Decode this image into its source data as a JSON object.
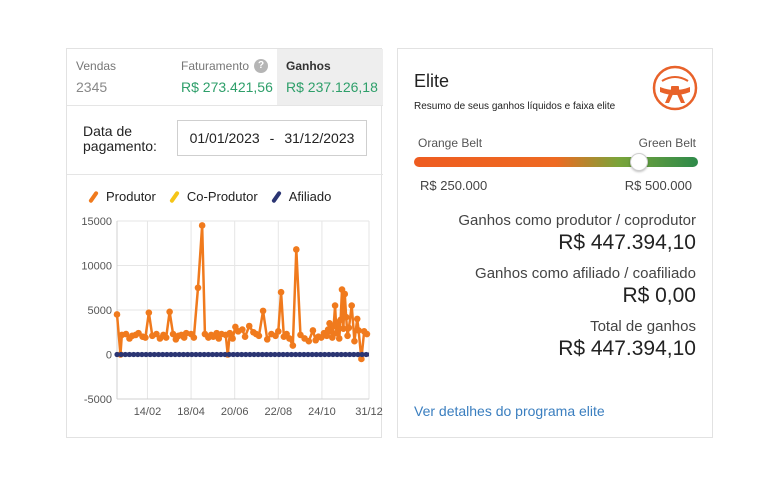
{
  "stats": {
    "vendas": {
      "label": "Vendas",
      "value": "2345"
    },
    "faturamento": {
      "label": "Faturamento",
      "value": "R$ 273.421,56",
      "help": "?"
    },
    "ganhos": {
      "label": "Ganhos",
      "value": "R$ 237.126,18"
    }
  },
  "date_filter": {
    "label": "Data de pagamento:",
    "start": "01/01/2023",
    "separator": "-",
    "end": "31/12/2023"
  },
  "legend": [
    {
      "name": "Produtor",
      "color": "#f07a1d"
    },
    {
      "name": "Co-Produtor",
      "color": "#f5c518"
    },
    {
      "name": "Afiliado",
      "color": "#2b3573"
    }
  ],
  "chart_data": {
    "type": "line",
    "y_ticks": [
      "15000",
      "10000",
      "5000",
      "0",
      "-5000"
    ],
    "ylim": [
      -5000,
      15000
    ],
    "x_ticks": [
      "14/02",
      "18/04",
      "20/06",
      "22/08",
      "24/10",
      "31/12"
    ],
    "xlim": [
      "01/01",
      "31/12"
    ],
    "grid": true,
    "series": [
      {
        "name": "Produtor",
        "color": "#f07a1d",
        "x_day_of_year": [
          1,
          6,
          8,
          14,
          19,
          23,
          28,
          32,
          38,
          42,
          47,
          52,
          58,
          63,
          68,
          72,
          77,
          82,
          86,
          88,
          90,
          94,
          98,
          101,
          108,
          112,
          118,
          124,
          128,
          133,
          137,
          140,
          142,
          145,
          148,
          152,
          158,
          161,
          164,
          168,
          172,
          176,
          182,
          186,
          192,
          198,
          202,
          206,
          212,
          218,
          224,
          230,
          234,
          238,
          242,
          246,
          250,
          255,
          260,
          266,
          272,
          278,
          284,
          288,
          292,
          296,
          300,
          304,
          306,
          308,
          310,
          312,
          314,
          316,
          318,
          320,
          322,
          324,
          326,
          328,
          330,
          332,
          334,
          336,
          340,
          344,
          348,
          350,
          354,
          358,
          362
        ],
        "values": [
          4500,
          0,
          2200,
          2300,
          1800,
          2100,
          2200,
          2400,
          2000,
          1900,
          4700,
          2100,
          2300,
          1800,
          2200,
          1900,
          4800,
          2300,
          1700,
          2000,
          2100,
          2200,
          1900,
          2400,
          2300,
          1900,
          7500,
          14500,
          2300,
          1900,
          2200,
          2000,
          2100,
          2400,
          1800,
          2300,
          2200,
          0,
          2400,
          1800,
          3100,
          2600,
          2800,
          2000,
          3200,
          2500,
          2300,
          2100,
          4900,
          1700,
          2300,
          2100,
          2600,
          7000,
          2000,
          2300,
          1800,
          1000,
          11800,
          2200,
          1800,
          1500,
          2700,
          1600,
          2000,
          1900,
          2400,
          2100,
          2800,
          3500,
          2600,
          1900,
          3200,
          5500,
          2400,
          3600,
          1800,
          3900,
          7300,
          2900,
          6800,
          4200,
          2100,
          3000,
          5500,
          1500,
          4000,
          2700,
          -500,
          2600,
          2300
        ]
      },
      {
        "name": "Co-Produtor",
        "color": "#f5c518",
        "x_day_of_year": [
          1,
          365
        ],
        "values": [
          0,
          0
        ]
      },
      {
        "name": "Afiliado",
        "color": "#2b3573",
        "x_day_of_year": [
          1,
          365
        ],
        "values": [
          0,
          0
        ]
      }
    ]
  },
  "elite": {
    "title": "Elite",
    "subtitle": "Resumo de seus ganhos líquidos e faixa elite",
    "logo_icon": "elite-belt-logo",
    "belt_from": "Orange Belt",
    "belt_to": "Green Belt",
    "from_value": "R$ 250.000",
    "to_value": "R$ 500.000",
    "progress_fraction": 0.79,
    "producer_label": "Ganhos como produtor / coprodutor",
    "producer_value": "R$ 447.394,10",
    "affiliate_label": "Ganhos como afiliado / coafiliado",
    "affiliate_value": "R$ 0,00",
    "total_label": "Total de ganhos",
    "total_value": "R$ 447.394,10",
    "link": "Ver detalhes do programa elite"
  }
}
